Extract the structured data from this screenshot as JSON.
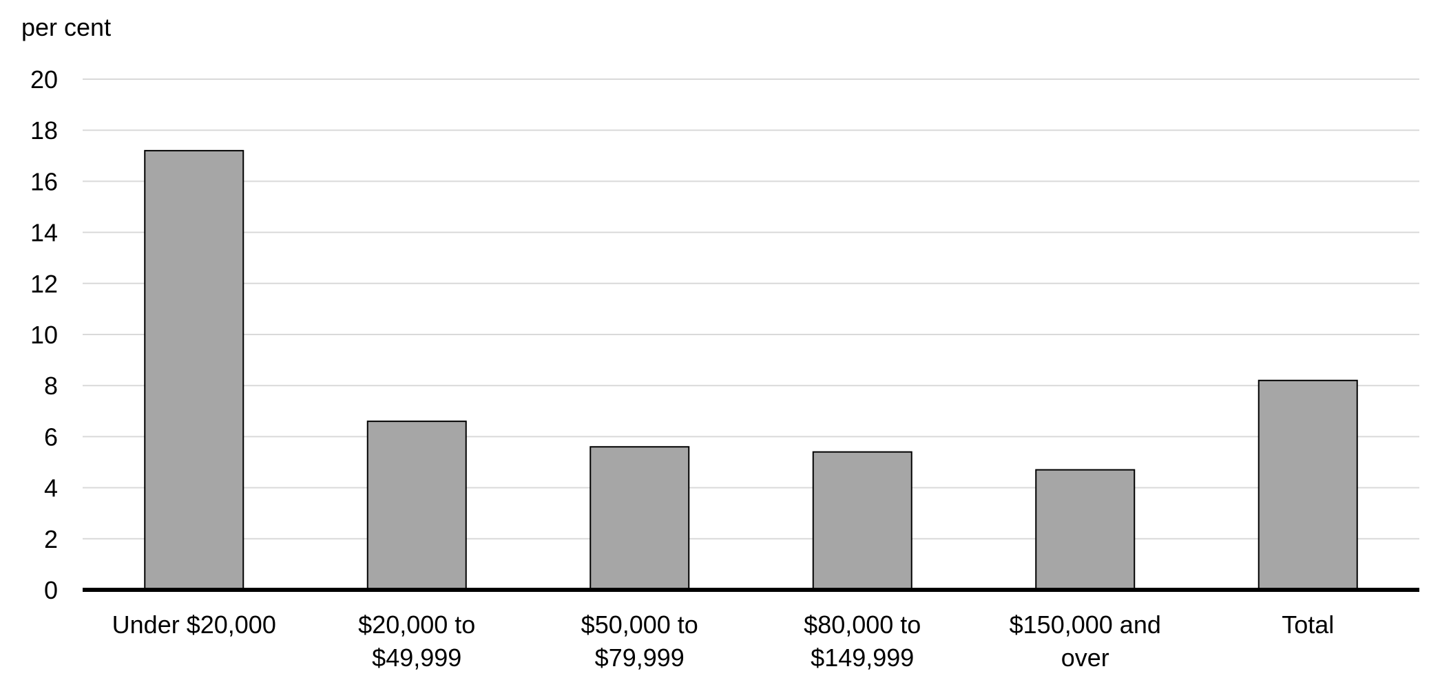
{
  "chart_data": {
    "type": "bar",
    "title": "",
    "unit_label": "per cent",
    "xlabel": "",
    "ylabel": "",
    "categories": [
      [
        "Under $20,000"
      ],
      [
        "$20,000 to",
        "$49,999"
      ],
      [
        "$50,000 to",
        "$79,999"
      ],
      [
        "$80,000 to",
        "$149,999"
      ],
      [
        "$150,000 and",
        "over"
      ],
      [
        "Total"
      ]
    ],
    "values": [
      17.2,
      6.6,
      5.6,
      5.4,
      4.7,
      8.2
    ],
    "ylim": [
      0,
      20
    ],
    "yticks": [
      0,
      2,
      4,
      6,
      8,
      10,
      12,
      14,
      16,
      18,
      20
    ],
    "grid": true,
    "legend": "none",
    "colors": {
      "bar_fill": "#a6a6a6",
      "bar_stroke": "#000000",
      "grid": "#d9d9d9",
      "axis": "#000000"
    }
  }
}
